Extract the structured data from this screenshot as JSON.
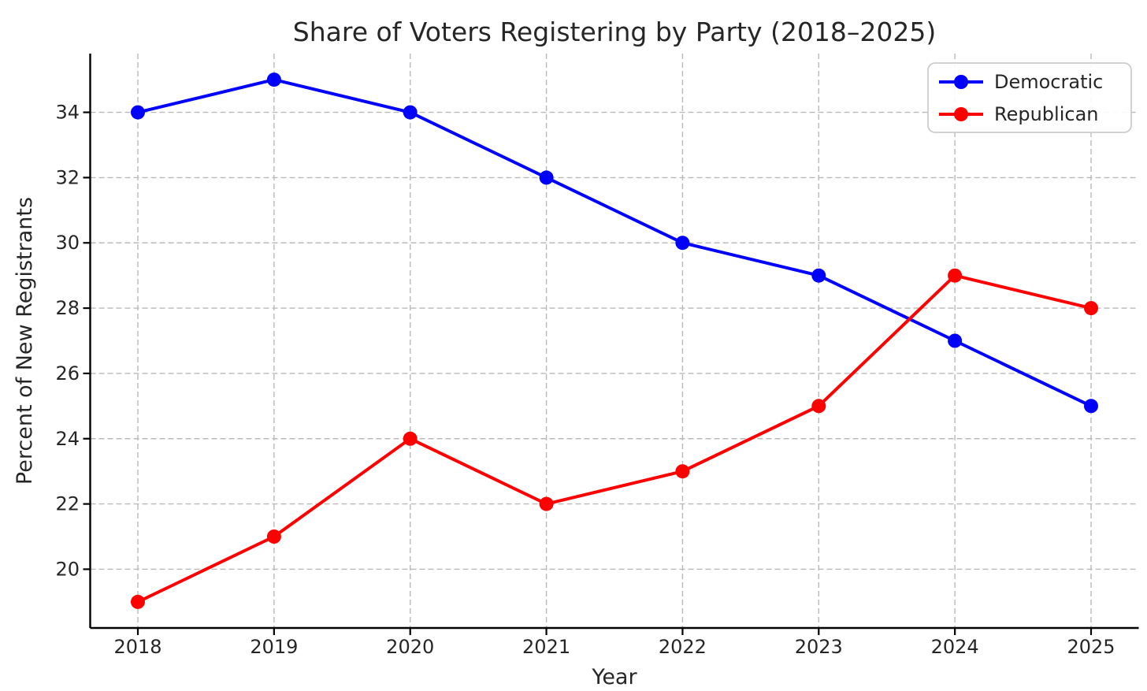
{
  "chart_data": {
    "type": "line",
    "title": "Share of Voters Registering by Party (2018–2025)",
    "xlabel": "Year",
    "ylabel": "Percent of New Registrants",
    "x": [
      2018,
      2019,
      2020,
      2021,
      2022,
      2023,
      2024,
      2025
    ],
    "x_tick_labels": [
      "2018",
      "2019",
      "2020",
      "2021",
      "2022",
      "2023",
      "2024",
      "2025"
    ],
    "yticks": [
      "20",
      "22",
      "24",
      "26",
      "28",
      "30",
      "32",
      "34"
    ],
    "ytick_values": [
      20,
      22,
      24,
      26,
      28,
      30,
      32,
      34
    ],
    "xlim": [
      2017.65,
      2025.35
    ],
    "ylim": [
      18.2,
      35.8
    ],
    "grid": true,
    "grid_style": "dashed",
    "legend": {
      "position": "upper right",
      "entries": [
        "Democratic",
        "Republican"
      ]
    },
    "series": [
      {
        "name": "Democratic",
        "color": "#0000ff",
        "marker": "circle",
        "values": [
          34,
          35,
          34,
          32,
          30,
          29,
          27,
          25
        ]
      },
      {
        "name": "Republican",
        "color": "#ff0000",
        "marker": "circle",
        "values": [
          19,
          21,
          24,
          22,
          23,
          25,
          29,
          28
        ]
      }
    ],
    "colors": {
      "text": "#262626",
      "grid": "#b9b9b9",
      "spine": "#000000",
      "background": "#ffffff",
      "legend_border": "#cccccc"
    }
  }
}
